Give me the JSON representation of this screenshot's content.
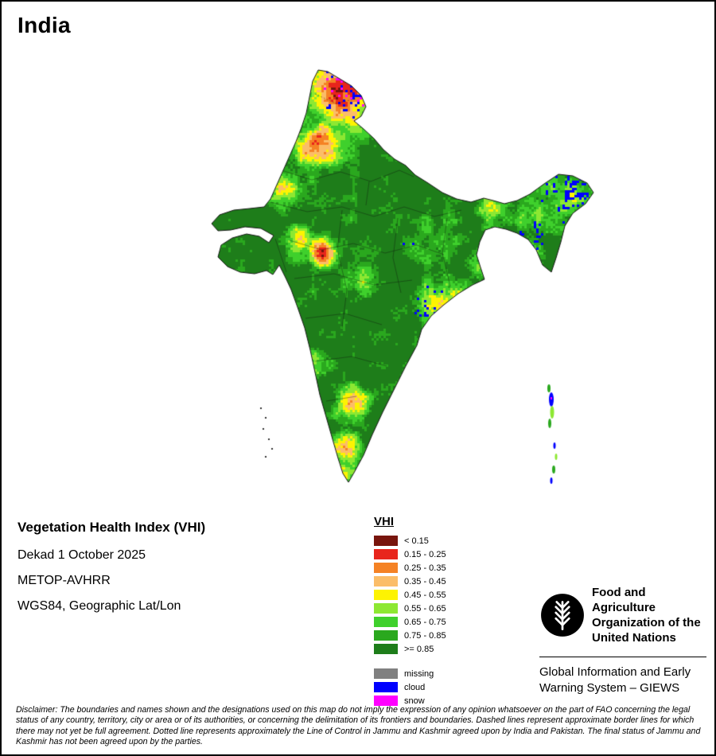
{
  "page": {
    "title": "India"
  },
  "info": {
    "title": "Vegetation Health Index (VHI)",
    "lines": [
      "Dekad 1 October 2025",
      "METOP-AVHRR",
      "WGS84, Geographic Lat/Lon"
    ]
  },
  "legend": {
    "title": "VHI",
    "classes": [
      {
        "label": "< 0.15",
        "color": "#78150d"
      },
      {
        "label": "0.15 - 0.25",
        "color": "#e8251c"
      },
      {
        "label": "0.25 - 0.35",
        "color": "#f58224"
      },
      {
        "label": "0.35 - 0.45",
        "color": "#fbbd68"
      },
      {
        "label": "0.45 - 0.55",
        "color": "#fdf302"
      },
      {
        "label": "0.55 - 0.65",
        "color": "#8de832"
      },
      {
        "label": "0.65 - 0.75",
        "color": "#3fd02c"
      },
      {
        "label": "0.75 - 0.85",
        "color": "#2aa81e"
      },
      {
        "label": ">= 0.85",
        "color": "#1e7d1a"
      }
    ],
    "extras": [
      {
        "label": "missing",
        "color": "#808080"
      },
      {
        "label": "cloud",
        "color": "#0000ff"
      },
      {
        "label": "snow",
        "color": "#ff00ff"
      }
    ]
  },
  "footer": {
    "fao_lines": [
      "Food and Agriculture",
      "Organization of the",
      "United Nations"
    ],
    "giews_lines": [
      "Global Information and Early",
      "Warning System – GIEWS"
    ],
    "disclaimer": "Disclaimer: The boundaries and names shown and the designations used on this map do not imply the expression of any opinion whatsoever on the part of FAO concerning the legal status of any country, territory, city or area or of its authorities, or concerning the delimitation of its frontiers and boundaries. Dashed lines represent approximate border lines for which there may not yet be full agreement. Dotted line represents approximately the Line of Control in Jammu and Kashmir agreed upon by India and Pakistan. The final status of Jammu and Kashmir has not been agreed upon by the parties."
  }
}
